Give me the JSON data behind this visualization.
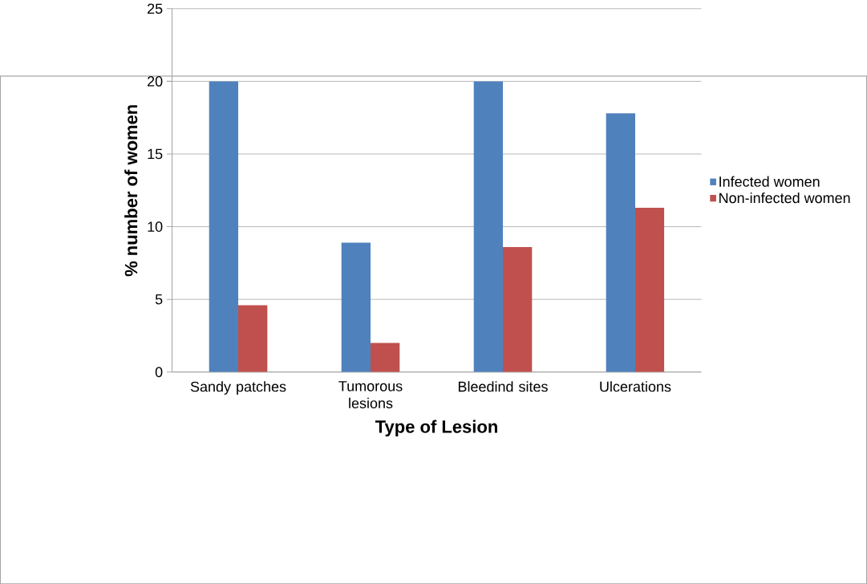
{
  "chart_data": {
    "type": "bar",
    "xlabel": "Type of Lesion",
    "ylabel": "% number of women",
    "categories": [
      "Sandy patches",
      "Tumorous lesions",
      "Bleedind sites",
      "Ulcerations"
    ],
    "series": [
      {
        "name": "Infected women",
        "color": "#4f81bd",
        "values": [
          20,
          8.9,
          20,
          17.8
        ]
      },
      {
        "name": "Non-infected women",
        "color": "#c0504d",
        "values": [
          4.6,
          2.0,
          8.6,
          11.3
        ]
      }
    ],
    "ylim": [
      0,
      25
    ],
    "yticks": [
      0,
      5,
      10,
      15,
      20,
      25
    ],
    "grid": "y",
    "legend": "right"
  }
}
